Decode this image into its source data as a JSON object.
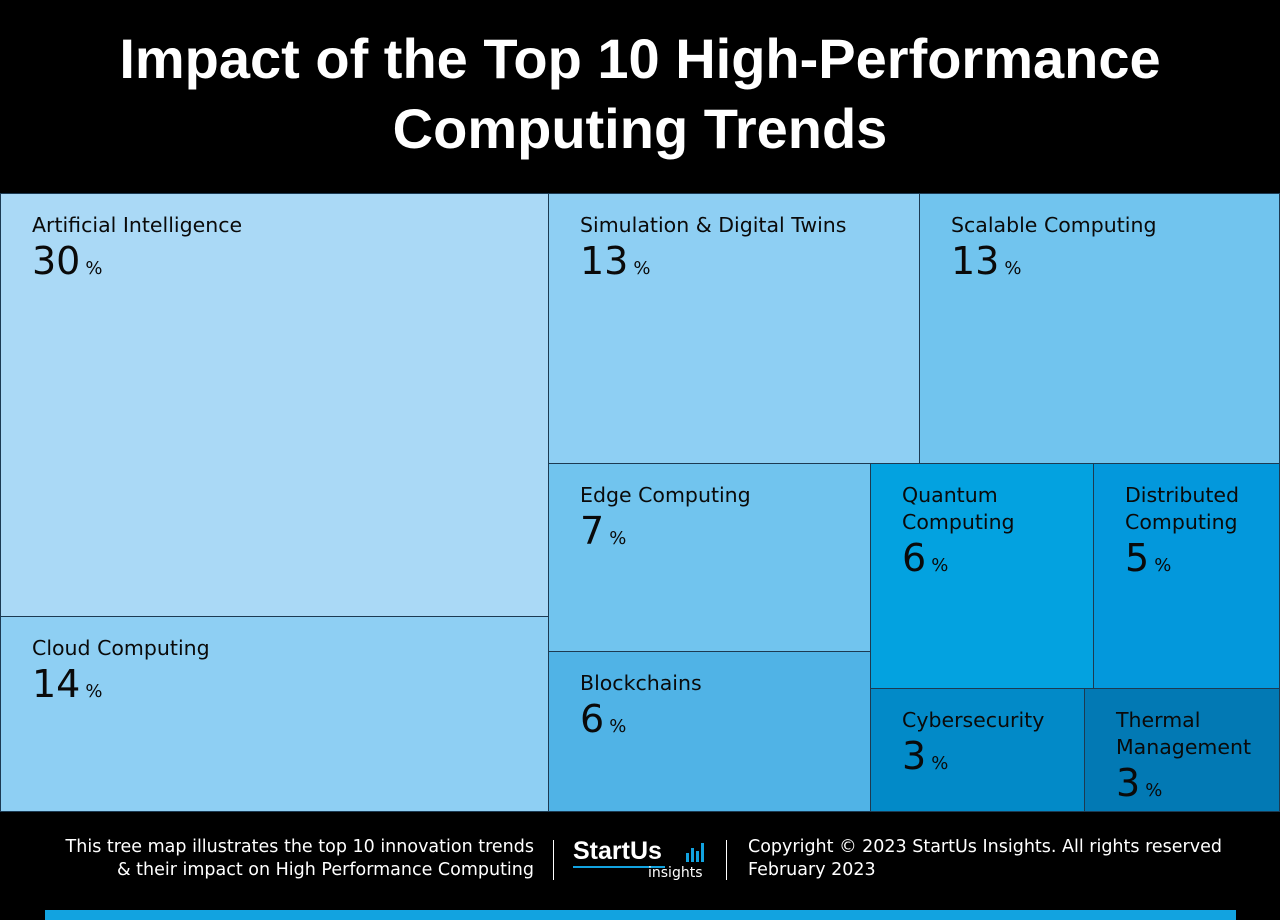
{
  "title": {
    "line1": "Impact of the Top 10 High-Performance",
    "line2": "Computing Trends"
  },
  "chart_data": {
    "type": "treemap",
    "unit": "%",
    "items": [
      {
        "name": "Artificial Intelligence",
        "value": 30,
        "color": "#aad9f6"
      },
      {
        "name": "Cloud Computing",
        "value": 14,
        "color": "#8ecff3"
      },
      {
        "name": "Simulation & Digital Twins",
        "value": 13,
        "color": "#8ecff3"
      },
      {
        "name": "Scalable Computing",
        "value": 13,
        "color": "#71c4ee"
      },
      {
        "name": "Edge Computing",
        "value": 7,
        "color": "#71c4ee"
      },
      {
        "name": "Blockchains",
        "value": 6,
        "color": "#50b3e6"
      },
      {
        "name": "Quantum Computing",
        "value": 6,
        "color": "#03a2e0"
      },
      {
        "name": "Distributed Computing",
        "value": 5,
        "color": "#0398dc"
      },
      {
        "name": "Cybersecurity",
        "value": 3,
        "color": "#028ac8"
      },
      {
        "name": "Thermal Management",
        "value": 3,
        "color": "#0279b4"
      }
    ]
  },
  "footer": {
    "description_line1": "This tree map illustrates the top 10 innovation trends",
    "description_line2": "& their impact on High Performance Computing",
    "logo_word": "StartUs",
    "logo_sub": "insights",
    "copyright": "Copyright © 2023 StartUs Insights. All rights reserved",
    "date": "February 2023"
  },
  "accent_color": "#12a3e0"
}
